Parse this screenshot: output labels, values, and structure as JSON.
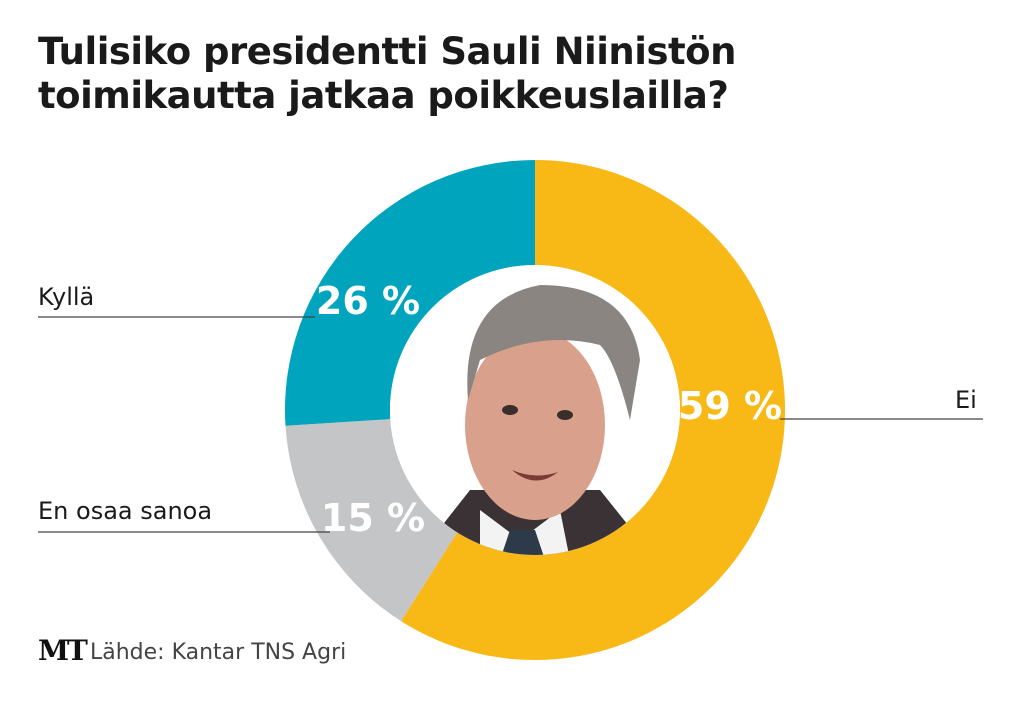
{
  "chart_data": {
    "type": "pie",
    "donut": true,
    "title": "Tulisiko presidentti Sauli Niinistön toimikautta jatkaa poikkeuslailla?",
    "categories": [
      "Ei",
      "En osaa sanoa",
      "Kyllä"
    ],
    "values": [
      59,
      15,
      26
    ],
    "value_labels": [
      "59 %",
      "15 %",
      "26 %"
    ],
    "unit": "%",
    "colors": [
      "#f8b816",
      "#c4c5c7",
      "#00a5bd"
    ],
    "start": "12 o'clock, clockwise",
    "center_image": "portrait photo"
  },
  "source": "Lähde: Kantar TNS Agri",
  "logo": "MT"
}
